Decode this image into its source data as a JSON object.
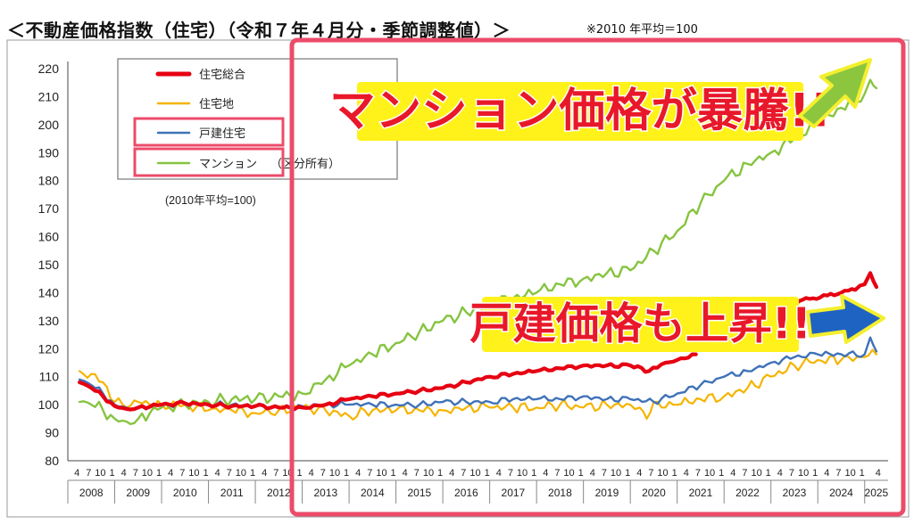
{
  "header": {
    "title": "＜不動産価格指数（住宅）（令和７年４月分・季節調整値）＞",
    "note": "※2010 年平均＝100"
  },
  "callouts": {
    "condo": "マンション価格が暴騰!!",
    "house": "戸建価格も上昇!!"
  },
  "colors": {
    "total": "#e60012",
    "land": "#f5b400",
    "house": "#3f72b8",
    "condo": "#86c440",
    "highlight": "#ec4b6a",
    "callout_text": "#e8182a",
    "callout_bg": "#fff21a"
  },
  "chart_data": {
    "type": "line",
    "title": "",
    "xlabel": "",
    "ylabel": "",
    "ylim": [
      80,
      220
    ],
    "yticks": [
      80,
      90,
      100,
      110,
      120,
      130,
      140,
      150,
      160,
      170,
      180,
      190,
      200,
      210,
      220
    ],
    "years": [
      "2008",
      "2009",
      "2010",
      "2011",
      "2012",
      "2013",
      "2014",
      "2015",
      "2016",
      "2017",
      "2018",
      "2019",
      "2020",
      "2021",
      "2022",
      "2023",
      "2024",
      "2025"
    ],
    "month_ticks": [
      "4",
      "7",
      "10",
      "1"
    ],
    "last_month_tick": "4",
    "grid": false,
    "legend_position": "top-left",
    "legend_note": "(2010年平均=100)",
    "legend_paren": "（区分所有）",
    "x_unit": "year-month (fractional year)",
    "series": [
      {
        "name": "住宅総合",
        "key": "total",
        "x": [
          2008.25,
          2008.5,
          2008.75,
          2009.0,
          2009.25,
          2009.5,
          2010.0,
          2010.5,
          2011.0,
          2011.5,
          2012.0,
          2012.5,
          2013.0,
          2013.5,
          2014.0,
          2014.5,
          2015.0,
          2015.5,
          2016.0,
          2016.5,
          2017.0,
          2017.5,
          2018.0,
          2018.5,
          2019.0,
          2019.5,
          2020.0,
          2020.4,
          2020.75,
          2021.0,
          2021.4
        ],
        "values": [
          108,
          106,
          103,
          99.5,
          98.5,
          99,
          100,
          100.5,
          100,
          99.5,
          99.5,
          99,
          99,
          100,
          102,
          103,
          104,
          105,
          106,
          108,
          110,
          111,
          112,
          113,
          114,
          114,
          114,
          112,
          115,
          116,
          118
        ]
      },
      {
        "name": "住宅総合",
        "key": "total2",
        "x": [
          2023.35,
          2023.6,
          2023.9,
          2024.2,
          2024.5,
          2024.8,
          2025.0,
          2025.12,
          2025.25
        ],
        "values": [
          135,
          137,
          138,
          139,
          140,
          141,
          143,
          147,
          142
        ]
      },
      {
        "name": "住宅地",
        "key": "land",
        "x": [
          2008.25,
          2008.5,
          2008.75,
          2009.0,
          2009.25,
          2009.5,
          2009.75,
          2010.0,
          2010.5,
          2011.0,
          2011.5,
          2012.0,
          2012.5,
          2013.0,
          2013.5,
          2014.0,
          2014.5,
          2015.0,
          2015.5,
          2016.0,
          2016.5,
          2017.0,
          2017.5,
          2018.0,
          2018.5,
          2019.0,
          2019.5,
          2020.0,
          2020.2,
          2020.35,
          2020.5,
          2020.75,
          2021.0,
          2021.5,
          2022.0,
          2022.5,
          2023.0,
          2023.5,
          2024.0,
          2024.5,
          2025.0,
          2025.25
        ],
        "values": [
          112,
          111,
          108,
          101,
          99,
          101,
          100,
          100,
          100,
          98,
          98,
          97,
          98,
          99,
          98,
          96,
          98,
          98,
          98,
          98,
          99,
          99,
          99,
          99,
          100,
          99,
          100,
          100,
          99,
          95,
          101,
          99,
          100,
          102,
          103,
          106,
          110,
          114,
          116,
          116,
          117,
          118
        ]
      },
      {
        "name": "戸建住宅",
        "key": "house",
        "x": [
          2008.25,
          2008.5,
          2008.75,
          2009.0,
          2009.25,
          2009.5,
          2010.0,
          2010.5,
          2011.0,
          2011.5,
          2012.0,
          2012.5,
          2013.0,
          2013.5,
          2014.0,
          2014.5,
          2015.0,
          2015.5,
          2016.0,
          2016.5,
          2017.0,
          2017.5,
          2018.0,
          2018.5,
          2019.0,
          2019.5,
          2020.0,
          2020.5,
          2021.0,
          2021.5,
          2022.0,
          2022.5,
          2023.0,
          2023.5,
          2024.0,
          2024.5,
          2025.0,
          2025.12,
          2025.25
        ],
        "values": [
          109,
          107,
          104,
          100,
          99,
          99,
          100,
          100,
          100,
          100,
          99.5,
          99,
          99.5,
          100,
          100,
          100,
          100,
          100,
          101,
          101,
          101,
          102,
          102,
          102,
          103,
          102,
          102,
          101,
          104,
          107,
          110,
          112,
          115,
          117,
          118,
          118,
          118,
          124,
          119
        ]
      },
      {
        "name": "マンション",
        "key": "condo",
        "x": [
          2008.25,
          2008.5,
          2008.75,
          2009.0,
          2009.25,
          2009.5,
          2009.75,
          2010.0,
          2010.5,
          2011.0,
          2011.5,
          2012.0,
          2012.5,
          2013.0,
          2013.5,
          2014.0,
          2014.5,
          2015.0,
          2015.5,
          2016.0,
          2016.5,
          2017.0,
          2017.5,
          2018.0,
          2018.5,
          2019.0,
          2019.5,
          2020.0,
          2020.5,
          2021.0,
          2021.5,
          2022.0,
          2022.5,
          2023.0,
          2023.5,
          2024.0,
          2024.5,
          2025.0,
          2025.12,
          2025.25
        ],
        "values": [
          101,
          100,
          98,
          95,
          94,
          95,
          97,
          99,
          100,
          101,
          102,
          102,
          103,
          104,
          109,
          114,
          118,
          122,
          126,
          130,
          133,
          136,
          138,
          140,
          143,
          145,
          147,
          148,
          155,
          162,
          172,
          180,
          186,
          190,
          195,
          200,
          206,
          211,
          216,
          213
        ]
      }
    ]
  }
}
